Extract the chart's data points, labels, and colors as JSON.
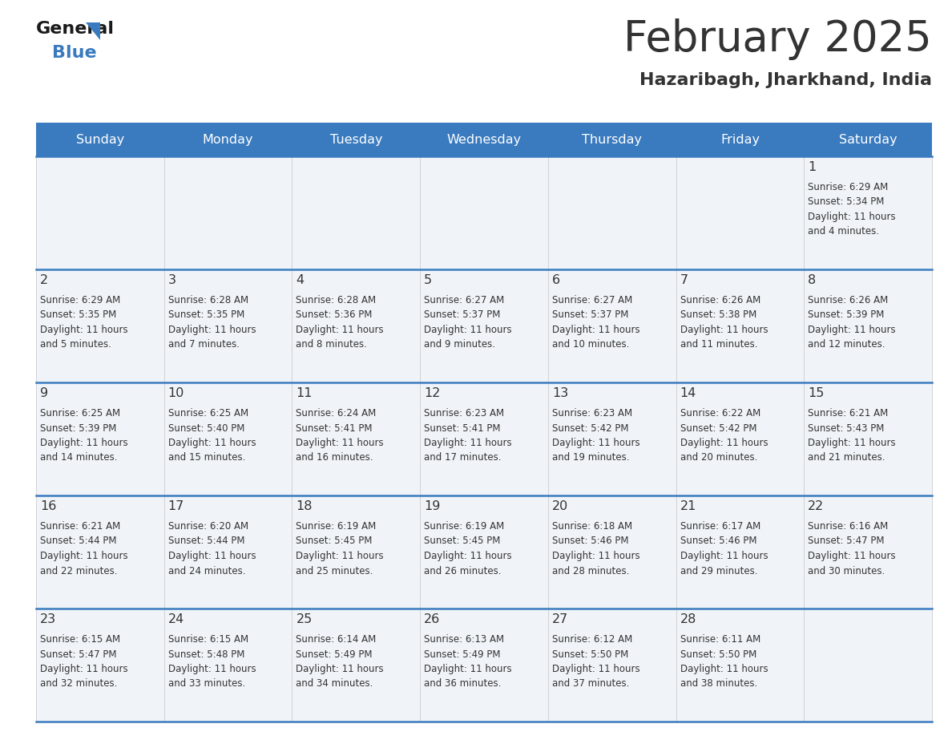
{
  "title": "February 2025",
  "subtitle": "Hazaribagh, Jharkhand, India",
  "header_bg": "#3a7bbf",
  "header_text_color": "#ffffff",
  "cell_bg": "#f0f4f8",
  "border_color": "#3a7bbf",
  "text_color": "#333333",
  "days_of_week": [
    "Sunday",
    "Monday",
    "Tuesday",
    "Wednesday",
    "Thursday",
    "Friday",
    "Saturday"
  ],
  "weeks": [
    [
      {
        "day": null,
        "sunrise": null,
        "sunset": null,
        "daylight": null
      },
      {
        "day": null,
        "sunrise": null,
        "sunset": null,
        "daylight": null
      },
      {
        "day": null,
        "sunrise": null,
        "sunset": null,
        "daylight": null
      },
      {
        "day": null,
        "sunrise": null,
        "sunset": null,
        "daylight": null
      },
      {
        "day": null,
        "sunrise": null,
        "sunset": null,
        "daylight": null
      },
      {
        "day": null,
        "sunrise": null,
        "sunset": null,
        "daylight": null
      },
      {
        "day": 1,
        "sunrise": "6:29 AM",
        "sunset": "5:34 PM",
        "daylight": "11 hours and 4 minutes."
      }
    ],
    [
      {
        "day": 2,
        "sunrise": "6:29 AM",
        "sunset": "5:35 PM",
        "daylight": "11 hours and 5 minutes."
      },
      {
        "day": 3,
        "sunrise": "6:28 AM",
        "sunset": "5:35 PM",
        "daylight": "11 hours and 7 minutes."
      },
      {
        "day": 4,
        "sunrise": "6:28 AM",
        "sunset": "5:36 PM",
        "daylight": "11 hours and 8 minutes."
      },
      {
        "day": 5,
        "sunrise": "6:27 AM",
        "sunset": "5:37 PM",
        "daylight": "11 hours and 9 minutes."
      },
      {
        "day": 6,
        "sunrise": "6:27 AM",
        "sunset": "5:37 PM",
        "daylight": "11 hours and 10 minutes."
      },
      {
        "day": 7,
        "sunrise": "6:26 AM",
        "sunset": "5:38 PM",
        "daylight": "11 hours and 11 minutes."
      },
      {
        "day": 8,
        "sunrise": "6:26 AM",
        "sunset": "5:39 PM",
        "daylight": "11 hours and 12 minutes."
      }
    ],
    [
      {
        "day": 9,
        "sunrise": "6:25 AM",
        "sunset": "5:39 PM",
        "daylight": "11 hours and 14 minutes."
      },
      {
        "day": 10,
        "sunrise": "6:25 AM",
        "sunset": "5:40 PM",
        "daylight": "11 hours and 15 minutes."
      },
      {
        "day": 11,
        "sunrise": "6:24 AM",
        "sunset": "5:41 PM",
        "daylight": "11 hours and 16 minutes."
      },
      {
        "day": 12,
        "sunrise": "6:23 AM",
        "sunset": "5:41 PM",
        "daylight": "11 hours and 17 minutes."
      },
      {
        "day": 13,
        "sunrise": "6:23 AM",
        "sunset": "5:42 PM",
        "daylight": "11 hours and 19 minutes."
      },
      {
        "day": 14,
        "sunrise": "6:22 AM",
        "sunset": "5:42 PM",
        "daylight": "11 hours and 20 minutes."
      },
      {
        "day": 15,
        "sunrise": "6:21 AM",
        "sunset": "5:43 PM",
        "daylight": "11 hours and 21 minutes."
      }
    ],
    [
      {
        "day": 16,
        "sunrise": "6:21 AM",
        "sunset": "5:44 PM",
        "daylight": "11 hours and 22 minutes."
      },
      {
        "day": 17,
        "sunrise": "6:20 AM",
        "sunset": "5:44 PM",
        "daylight": "11 hours and 24 minutes."
      },
      {
        "day": 18,
        "sunrise": "6:19 AM",
        "sunset": "5:45 PM",
        "daylight": "11 hours and 25 minutes."
      },
      {
        "day": 19,
        "sunrise": "6:19 AM",
        "sunset": "5:45 PM",
        "daylight": "11 hours and 26 minutes."
      },
      {
        "day": 20,
        "sunrise": "6:18 AM",
        "sunset": "5:46 PM",
        "daylight": "11 hours and 28 minutes."
      },
      {
        "day": 21,
        "sunrise": "6:17 AM",
        "sunset": "5:46 PM",
        "daylight": "11 hours and 29 minutes."
      },
      {
        "day": 22,
        "sunrise": "6:16 AM",
        "sunset": "5:47 PM",
        "daylight": "11 hours and 30 minutes."
      }
    ],
    [
      {
        "day": 23,
        "sunrise": "6:15 AM",
        "sunset": "5:47 PM",
        "daylight": "11 hours and 32 minutes."
      },
      {
        "day": 24,
        "sunrise": "6:15 AM",
        "sunset": "5:48 PM",
        "daylight": "11 hours and 33 minutes."
      },
      {
        "day": 25,
        "sunrise": "6:14 AM",
        "sunset": "5:49 PM",
        "daylight": "11 hours and 34 minutes."
      },
      {
        "day": 26,
        "sunrise": "6:13 AM",
        "sunset": "5:49 PM",
        "daylight": "11 hours and 36 minutes."
      },
      {
        "day": 27,
        "sunrise": "6:12 AM",
        "sunset": "5:50 PM",
        "daylight": "11 hours and 37 minutes."
      },
      {
        "day": 28,
        "sunrise": "6:11 AM",
        "sunset": "5:50 PM",
        "daylight": "11 hours and 38 minutes."
      },
      {
        "day": null,
        "sunrise": null,
        "sunset": null,
        "daylight": null
      }
    ]
  ],
  "logo_color_general": "#1a1a1a",
  "logo_color_blue": "#3a7bbf",
  "logo_triangle_color": "#3a7bbf",
  "figsize": [
    11.88,
    9.18
  ],
  "dpi": 100
}
